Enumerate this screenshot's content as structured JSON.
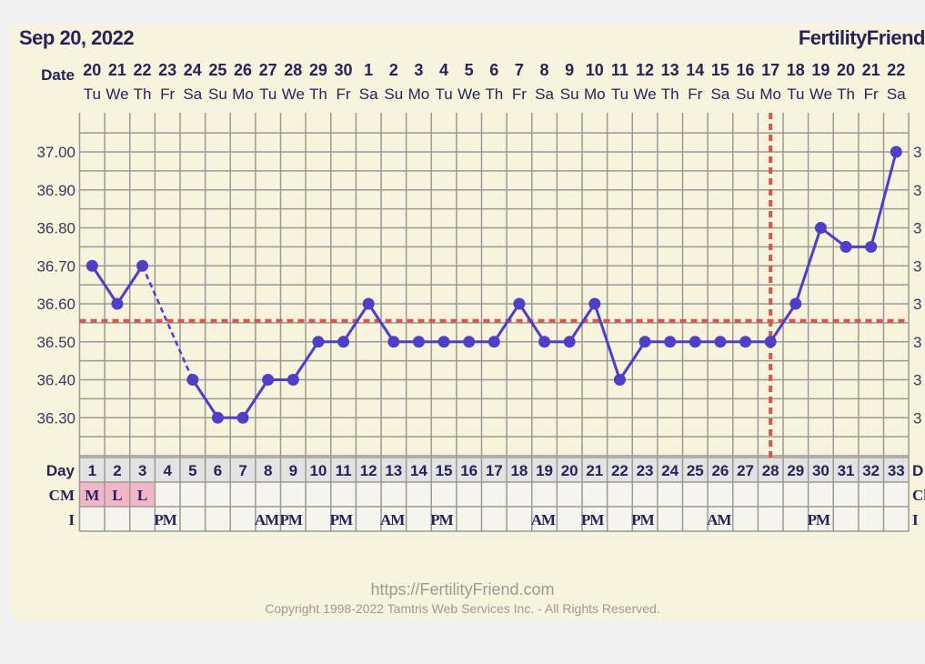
{
  "header": {
    "date_title": "Sep 20, 2022",
    "brand": "FertilityFriend"
  },
  "footer": {
    "url": "https://FertilityFriend.com",
    "copyright": "Copyright 1998-2022 Tamtris Web Services Inc. - All Rights Reserved."
  },
  "colors": {
    "temp_line": "#4f3fc8",
    "coverline": "#d9534f",
    "ovulation_line": "#d9534f",
    "cm_fill": "#f2b6c8",
    "text": "#25235a",
    "grid": "#9a9a96"
  },
  "chart_data": {
    "type": "line",
    "row_labels": {
      "date": "Date",
      "day": "Day",
      "cm": "CM",
      "intercourse": "I"
    },
    "right_labels": {
      "day": "D",
      "cm": "Cl",
      "intercourse": "I",
      "temp": "3"
    },
    "dates": [
      "20",
      "21",
      "22",
      "23",
      "24",
      "25",
      "26",
      "27",
      "28",
      "29",
      "30",
      "1",
      "2",
      "3",
      "4",
      "5",
      "6",
      "7",
      "8",
      "9",
      "10",
      "11",
      "12",
      "13",
      "14",
      "15",
      "16",
      "17",
      "18",
      "19",
      "20",
      "21",
      "22"
    ],
    "weekdays": [
      "Tu",
      "We",
      "Th",
      "Fr",
      "Sa",
      "Su",
      "Mo",
      "Tu",
      "We",
      "Th",
      "Fr",
      "Sa",
      "Su",
      "Mo",
      "Tu",
      "We",
      "Th",
      "Fr",
      "Sa",
      "Su",
      "Mo",
      "Tu",
      "We",
      "Th",
      "Fr",
      "Sa",
      "Su",
      "Mo",
      "Tu",
      "We",
      "Th",
      "Fr",
      "Sa"
    ],
    "days": [
      1,
      2,
      3,
      4,
      5,
      6,
      7,
      8,
      9,
      10,
      11,
      12,
      13,
      14,
      15,
      16,
      17,
      18,
      19,
      20,
      21,
      22,
      23,
      24,
      25,
      26,
      27,
      28,
      29,
      30,
      31,
      32,
      33
    ],
    "temps": [
      36.7,
      36.6,
      36.7,
      null,
      36.4,
      36.3,
      36.3,
      36.4,
      36.4,
      36.5,
      36.5,
      36.6,
      36.5,
      36.5,
      36.5,
      36.5,
      36.5,
      36.6,
      36.5,
      36.5,
      36.6,
      36.4,
      36.5,
      36.5,
      36.5,
      36.5,
      36.5,
      36.5,
      36.6,
      36.8,
      36.75,
      36.75,
      37.0
    ],
    "cm": [
      "M",
      "L",
      "L",
      "",
      "",
      "",
      "",
      "",
      "",
      "",
      "",
      "",
      "",
      "",
      "",
      "",
      "",
      "",
      "",
      "",
      "",
      "",
      "",
      "",
      "",
      "",
      "",
      "",
      "",
      "",
      "",
      "",
      ""
    ],
    "intercourse": [
      "",
      "",
      "",
      "PM",
      "",
      "",
      "",
      "AM",
      "PM",
      "",
      "PM",
      "",
      "AM",
      "",
      "PM",
      "",
      "",
      "",
      "AM",
      "",
      "PM",
      "",
      "PM",
      "",
      "",
      "AM",
      "",
      "",
      "",
      "PM",
      "",
      "",
      ""
    ],
    "y_ticks": [
      "37.00",
      "36.90",
      "36.80",
      "36.70",
      "36.60",
      "36.50",
      "36.40",
      "36.30"
    ],
    "ylim": [
      36.2,
      37.05
    ],
    "coverline": 36.555,
    "ovulation_day": 28,
    "grid": true
  }
}
